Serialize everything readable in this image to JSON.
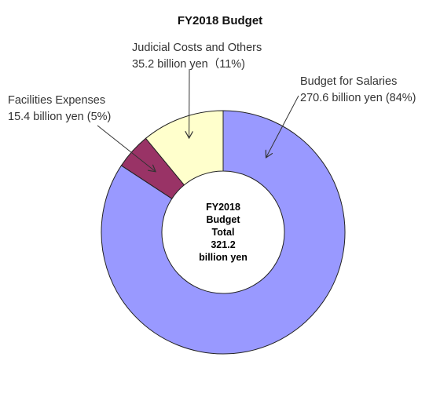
{
  "chart_data": {
    "type": "pie",
    "title": "FY2018 Budget",
    "center_label": [
      "FY2018",
      "Budget",
      "Total",
      "321.2",
      "billion yen"
    ],
    "slices": [
      {
        "name": "Budget for Salaries",
        "value": 270.6,
        "unit": "billion yen",
        "percent": 84,
        "color": "#9999ff",
        "label_line1": "Budget for Salaries",
        "label_line2": "270.6 billion yen (84%)"
      },
      {
        "name": "Facilities Expenses",
        "value": 15.4,
        "unit": "billion yen",
        "percent": 5,
        "color": "#993366",
        "label_line1": "Facilities Expenses",
        "label_line2": "15.4 billion yen (5%)"
      },
      {
        "name": "Judicial Costs and Others",
        "value": 35.2,
        "unit": "billion yen",
        "percent": 11,
        "color": "#ffffcc",
        "label_line1": "Judicial Costs and Others",
        "label_line2": "35.2 billion yen（11%)"
      }
    ]
  }
}
